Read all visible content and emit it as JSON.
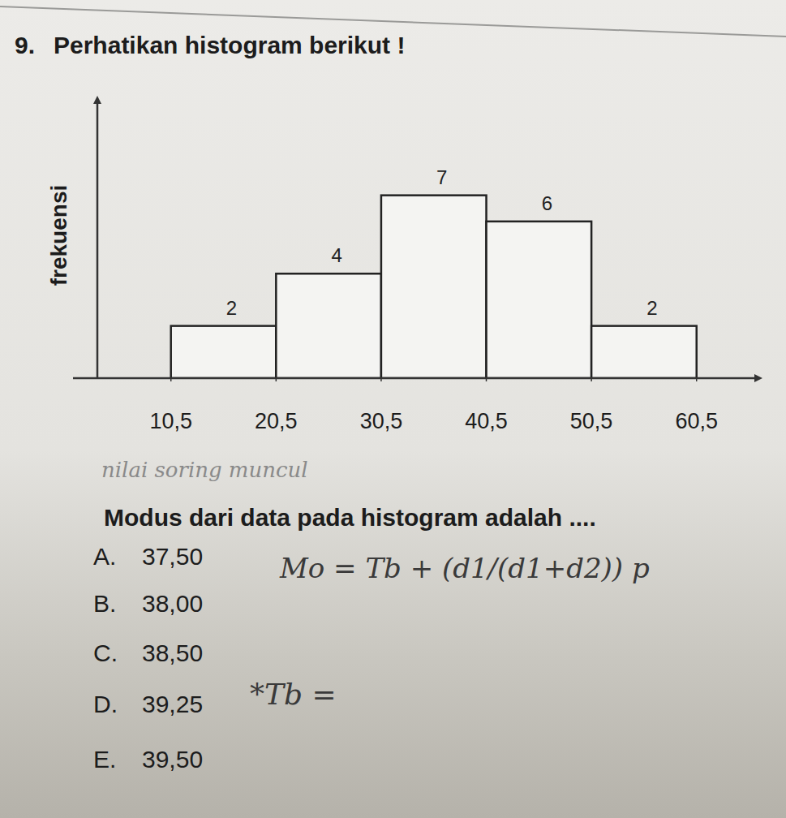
{
  "question": {
    "number": "9.",
    "text": "Perhatikan histogram berikut !",
    "prompt": "Modus dari data pada histogram adalah ....",
    "options": [
      {
        "letter": "A.",
        "text": "37,50"
      },
      {
        "letter": "B.",
        "text": "38,00"
      },
      {
        "letter": "C.",
        "text": "38,50"
      },
      {
        "letter": "D.",
        "text": "39,25"
      },
      {
        "letter": "E.",
        "text": "39,50"
      }
    ]
  },
  "handwriting": [
    "nilai soring muncul",
    "Mo = Tb + (d1/(d1+d2)) p",
    "*Tb ="
  ],
  "chart_data": {
    "type": "histogram",
    "y_label": "frekuensi",
    "bins": [
      10.5,
      20.5,
      30.5,
      40.5,
      50.5,
      60.5
    ],
    "counts": [
      2,
      4,
      7,
      6,
      2
    ],
    "xlim": [
      3.5,
      66
    ],
    "ylim": [
      0,
      10.5
    ],
    "xticks": [
      {
        "value": 10.5,
        "label": "10,5"
      },
      {
        "value": 20.5,
        "label": "20,5"
      },
      {
        "value": 30.5,
        "label": "30,5"
      },
      {
        "value": 40.5,
        "label": "40,5"
      },
      {
        "value": 50.5,
        "label": "50,5"
      },
      {
        "value": 60.5,
        "label": "60,5"
      }
    ],
    "data_labels": true,
    "tick_labels": "x",
    "color": "#f4f4f2"
  }
}
